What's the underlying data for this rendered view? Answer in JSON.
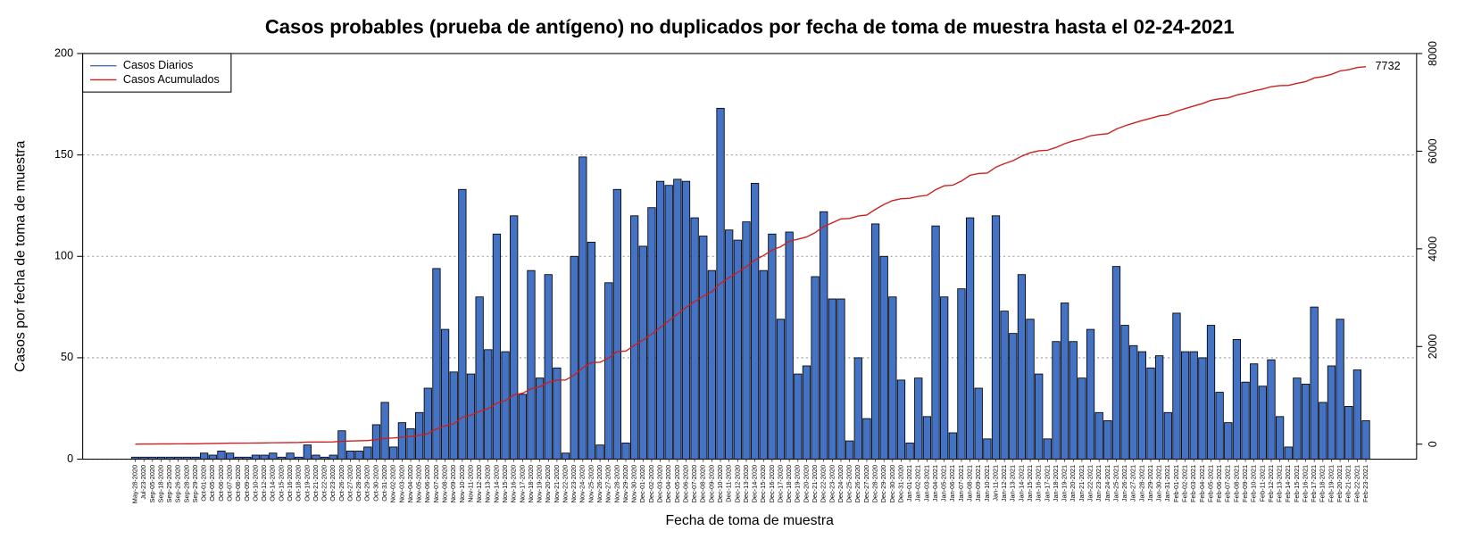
{
  "chart_data": {
    "type": "bar",
    "title": "Casos probables (prueba de antígeno) no duplicados por fecha de toma de muestra hasta el 02-24-2021",
    "x_label": "Fecha de toma de muestra",
    "y_label": "Casos por fecha de toma de muestra",
    "categories": [
      "May-28-2020",
      "Jul-23-2020",
      "Sep-05-2020",
      "Sep-18-2020",
      "Sep-25-2020",
      "Sep-26-2020",
      "Sep-28-2020",
      "Sep-29-2020",
      "Oct-01-2020",
      "Oct-05-2020",
      "Oct-06-2020",
      "Oct-07-2020",
      "Oct-08-2020",
      "Oct-09-2020",
      "Oct-10-2020",
      "Oct-12-2020",
      "Oct-14-2020",
      "Oct-15-2020",
      "Oct-16-2020",
      "Oct-18-2020",
      "Oct-19-2020",
      "Oct-21-2020",
      "Oct-22-2020",
      "Oct-23-2020",
      "Oct-26-2020",
      "Oct-27-2020",
      "Oct-28-2020",
      "Oct-29-2020",
      "Oct-30-2020",
      "Oct-31-2020",
      "Nov-02-2020",
      "Nov-03-2020",
      "Nov-04-2020",
      "Nov-05-2020",
      "Nov-06-2020",
      "Nov-07-2020",
      "Nov-08-2020",
      "Nov-09-2020",
      "Nov-10-2020",
      "Nov-11-2020",
      "Nov-12-2020",
      "Nov-13-2020",
      "Nov-14-2020",
      "Nov-15-2020",
      "Nov-16-2020",
      "Nov-17-2020",
      "Nov-18-2020",
      "Nov-19-2020",
      "Nov-20-2020",
      "Nov-21-2020",
      "Nov-22-2020",
      "Nov-23-2020",
      "Nov-24-2020",
      "Nov-25-2020",
      "Nov-26-2020",
      "Nov-27-2020",
      "Nov-28-2020",
      "Nov-29-2020",
      "Nov-30-2020",
      "Dec-01-2020",
      "Dec-02-2020",
      "Dec-03-2020",
      "Dec-04-2020",
      "Dec-05-2020",
      "Dec-06-2020",
      "Dec-07-2020",
      "Dec-08-2020",
      "Dec-09-2020",
      "Dec-10-2020",
      "Dec-11-2020",
      "Dec-12-2020",
      "Dec-13-2020",
      "Dec-14-2020",
      "Dec-15-2020",
      "Dec-16-2020",
      "Dec-17-2020",
      "Dec-18-2020",
      "Dec-19-2020",
      "Dec-20-2020",
      "Dec-21-2020",
      "Dec-22-2020",
      "Dec-23-2020",
      "Dec-24-2020",
      "Dec-25-2020",
      "Dec-26-2020",
      "Dec-27-2020",
      "Dec-28-2020",
      "Dec-29-2020",
      "Dec-30-2020",
      "Dec-31-2020",
      "Jan-01-2021",
      "Jan-02-2021",
      "Jan-03-2021",
      "Jan-04-2021",
      "Jan-05-2021",
      "Jan-06-2021",
      "Jan-07-2021",
      "Jan-08-2021",
      "Jan-09-2021",
      "Jan-10-2021",
      "Jan-11-2021",
      "Jan-12-2021",
      "Jan-13-2021",
      "Jan-14-2021",
      "Jan-15-2021",
      "Jan-16-2021",
      "Jan-17-2021",
      "Jan-18-2021",
      "Jan-19-2021",
      "Jan-20-2021",
      "Jan-21-2021",
      "Jan-22-2021",
      "Jan-23-2021",
      "Jan-24-2021",
      "Jan-25-2021",
      "Jan-26-2021",
      "Jan-27-2021",
      "Jan-28-2021",
      "Jan-29-2021",
      "Jan-30-2021",
      "Jan-31-2021",
      "Feb-01-2021",
      "Feb-02-2021",
      "Feb-03-2021",
      "Feb-04-2021",
      "Feb-05-2021",
      "Feb-06-2021",
      "Feb-07-2021",
      "Feb-08-2021",
      "Feb-09-2021",
      "Feb-10-2021",
      "Feb-11-2021",
      "Feb-12-2021",
      "Feb-13-2021",
      "Feb-14-2021",
      "Feb-15-2021",
      "Feb-16-2021",
      "Feb-17-2021",
      "Feb-18-2021",
      "Feb-19-2021",
      "Feb-20-2021",
      "Feb-21-2021",
      "Feb-22-2021",
      "Feb-23-2021"
    ],
    "series": [
      {
        "name": "Casos Diarios",
        "type": "bar",
        "color": "#4472c4",
        "legend_color": "#4a6fb5",
        "values": [
          1,
          1,
          1,
          1,
          1,
          1,
          1,
          1,
          3,
          2,
          4,
          3,
          1,
          1,
          2,
          2,
          3,
          1,
          3,
          1,
          7,
          2,
          1,
          2,
          14,
          4,
          4,
          6,
          17,
          28,
          6,
          18,
          15,
          23,
          35,
          94,
          64,
          43,
          133,
          42,
          80,
          54,
          111,
          53,
          120,
          32,
          93,
          40,
          91,
          45,
          3,
          100,
          149,
          107,
          7,
          87,
          133,
          8,
          120,
          105,
          124,
          137,
          135,
          138,
          137,
          119,
          110,
          93,
          173,
          113,
          108,
          117,
          136,
          93,
          111,
          69,
          112,
          42,
          46,
          90,
          122,
          79,
          79,
          9,
          50,
          20,
          116,
          100,
          80,
          39,
          8,
          40,
          21,
          115,
          80,
          13,
          84,
          119,
          35,
          10,
          120,
          73,
          62,
          91,
          69,
          42,
          10,
          58,
          77,
          58,
          40,
          64,
          23,
          19,
          95,
          66,
          56,
          53,
          45,
          51,
          23,
          72,
          53,
          53,
          50,
          66,
          33,
          18,
          59,
          38,
          47,
          36,
          49,
          21,
          6,
          40,
          37,
          75,
          28,
          46,
          69,
          26,
          44,
          19
        ]
      },
      {
        "name": "Casos Acumulados",
        "type": "line",
        "axis": "y2",
        "color": "#cc1f1f",
        "values": [
          1,
          2,
          3,
          4,
          5,
          6,
          7,
          8,
          11,
          13,
          17,
          20,
          21,
          22,
          24,
          26,
          29,
          30,
          33,
          34,
          41,
          43,
          44,
          46,
          60,
          64,
          68,
          74,
          91,
          119,
          125,
          143,
          158,
          181,
          216,
          310,
          374,
          417,
          550,
          592,
          672,
          726,
          837,
          890,
          1010,
          1042,
          1135,
          1175,
          1266,
          1311,
          1314,
          1414,
          1563,
          1670,
          1677,
          1764,
          1897,
          1905,
          2025,
          2130,
          2254,
          2391,
          2526,
          2664,
          2801,
          2920,
          3030,
          3123,
          3296,
          3409,
          3517,
          3634,
          3770,
          3863,
          3974,
          4043,
          4155,
          4197,
          4243,
          4333,
          4455,
          4534,
          4613,
          4622,
          4672,
          4692,
          4808,
          4908,
          4988,
          5027,
          5035,
          5075,
          5096,
          5211,
          5291,
          5304,
          5388,
          5507,
          5542,
          5552,
          5672,
          5745,
          5807,
          5898,
          5967,
          6009,
          6019,
          6077,
          6154,
          6212,
          6252,
          6316,
          6339,
          6358,
          6453,
          6519,
          6575,
          6628,
          6673,
          6724,
          6747,
          6819,
          6872,
          6925,
          6975,
          7041,
          7074,
          7092,
          7151,
          7189,
          7236,
          7272,
          7321,
          7342,
          7348,
          7388,
          7425,
          7500,
          7528,
          7574,
          7643,
          7669,
          7713,
          7732
        ]
      }
    ],
    "ylim": [
      0,
      200
    ],
    "yticks": [
      0,
      50,
      100,
      150,
      200
    ],
    "y2lim": [
      -308,
      8000
    ],
    "y2ticks": [
      0,
      2000,
      4000,
      6000,
      8000
    ],
    "grid": true,
    "legend": "top-left"
  }
}
